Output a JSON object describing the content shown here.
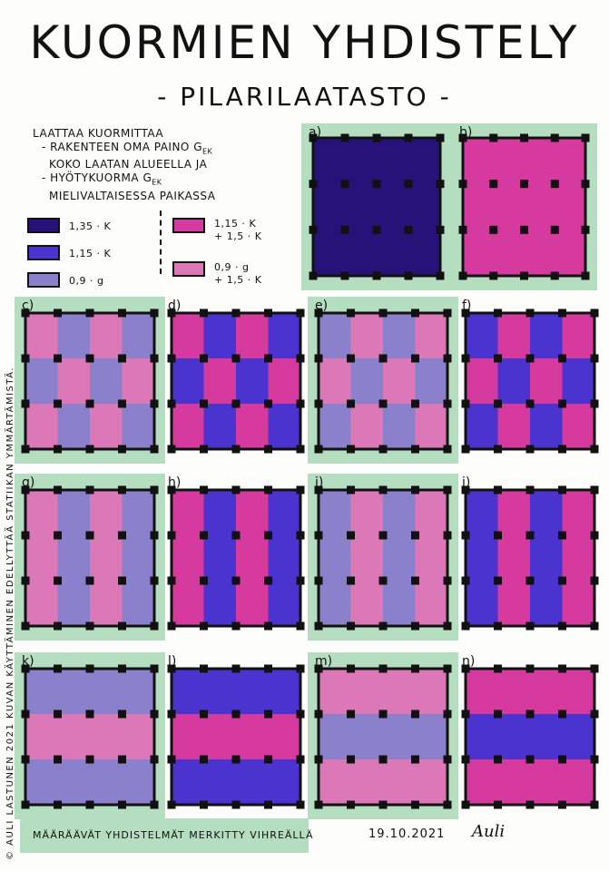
{
  "title": "KUORMIEN YHDISTELY",
  "subtitle": "- PILARILAATASTO -",
  "intro": {
    "line1": "LAATTAA KUORMITTAA",
    "line2": "- RAKENTEEN OMA PAINO g",
    "line2_sub": "ek",
    "line3": "KOKO LAATAN ALUEELLA",
    "line3_end": "JA",
    "line4": "- HYÖTYKUORMA g",
    "line4_sub": "ek",
    "line5": "MIELIVALTAISESSA PAIKASSA"
  },
  "legend": [
    {
      "key": "A",
      "color": "#25137a",
      "text": "1,35 · K",
      "text2": ""
    },
    {
      "key": "B",
      "color": "#4a33cf",
      "text": "1,15 · K",
      "text2": ""
    },
    {
      "key": "C",
      "color": "#8a80cc",
      "text": "0,9 · g",
      "text2": ""
    },
    {
      "key": "D",
      "color": "#d63a9e",
      "text": "1,15 · K",
      "text2": "+ 1,5 · K"
    },
    {
      "key": "E",
      "color": "#dc78b8",
      "text": "0,9 · g",
      "text2": "+ 1,5 · K"
    }
  ],
  "colors": {
    "A": "#25137a",
    "B": "#4a33cf",
    "C": "#8a80cc",
    "D": "#d63a9e",
    "E": "#dc78b8",
    "green": "#b5ddbf"
  },
  "panels": [
    {
      "label": "a)",
      "green": true,
      "rows": [
        [
          "A"
        ]
      ]
    },
    {
      "label": "b)",
      "green": true,
      "rows": [
        [
          "D"
        ]
      ]
    },
    {
      "label": "c)",
      "green": true,
      "rows": [
        [
          "E",
          "C",
          "E",
          "C"
        ],
        [
          "C",
          "E",
          "C",
          "E"
        ],
        [
          "E",
          "C",
          "E",
          "C"
        ]
      ]
    },
    {
      "label": "d)",
      "green": false,
      "rows": [
        [
          "D",
          "B",
          "D",
          "B"
        ],
        [
          "B",
          "D",
          "B",
          "D"
        ],
        [
          "D",
          "B",
          "D",
          "B"
        ]
      ]
    },
    {
      "label": "e)",
      "green": true,
      "rows": [
        [
          "C",
          "E",
          "C",
          "E"
        ],
        [
          "E",
          "C",
          "E",
          "C"
        ],
        [
          "C",
          "E",
          "C",
          "E"
        ]
      ]
    },
    {
      "label": "f)",
      "green": false,
      "rows": [
        [
          "B",
          "D",
          "B",
          "D"
        ],
        [
          "D",
          "B",
          "D",
          "B"
        ],
        [
          "B",
          "D",
          "B",
          "D"
        ]
      ]
    },
    {
      "label": "g)",
      "green": true,
      "rows": [
        [
          "E",
          "C",
          "E",
          "C"
        ]
      ]
    },
    {
      "label": "h)",
      "green": false,
      "rows": [
        [
          "D",
          "B",
          "D",
          "B"
        ]
      ]
    },
    {
      "label": "i)",
      "green": true,
      "rows": [
        [
          "C",
          "E",
          "C",
          "E"
        ]
      ]
    },
    {
      "label": "j)",
      "green": false,
      "rows": [
        [
          "B",
          "D",
          "B",
          "D"
        ]
      ]
    },
    {
      "label": "k)",
      "green": true,
      "rows": [
        [
          "C"
        ],
        [
          "E"
        ],
        [
          "C"
        ]
      ]
    },
    {
      "label": "l)",
      "green": false,
      "rows": [
        [
          "B"
        ],
        [
          "D"
        ],
        [
          "B"
        ]
      ]
    },
    {
      "label": "m)",
      "green": true,
      "rows": [
        [
          "E"
        ],
        [
          "C"
        ],
        [
          "E"
        ]
      ]
    },
    {
      "label": "n)",
      "green": false,
      "rows": [
        [
          "D"
        ],
        [
          "B"
        ],
        [
          "D"
        ]
      ]
    }
  ],
  "side_text": "© AULI LASTUNEN 2021   KUVAN KÄYTTÄMINEN EDELLYTTÄÄ STATIIKAN YMMÄRTÄMISTÄ.",
  "footer": {
    "note": "MÄÄRÄÄVÄT YHDISTELMÄT MERKITTY VIHREÄLLÄ",
    "date": "19.10.2021",
    "signature": "Auli"
  }
}
